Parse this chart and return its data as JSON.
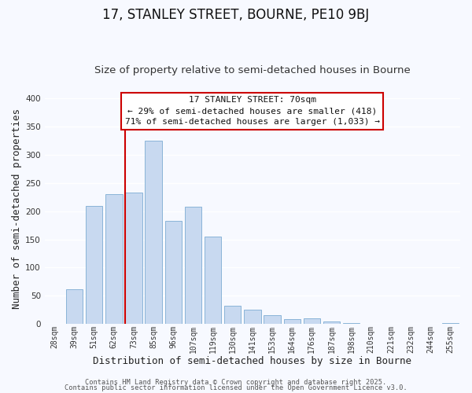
{
  "title": "17, STANLEY STREET, BOURNE, PE10 9BJ",
  "subtitle": "Size of property relative to semi-detached houses in Bourne",
  "xlabel": "Distribution of semi-detached houses by size in Bourne",
  "ylabel": "Number of semi-detached properties",
  "bar_labels": [
    "28sqm",
    "39sqm",
    "51sqm",
    "62sqm",
    "73sqm",
    "85sqm",
    "96sqm",
    "107sqm",
    "119sqm",
    "130sqm",
    "141sqm",
    "153sqm",
    "164sqm",
    "176sqm",
    "187sqm",
    "198sqm",
    "210sqm",
    "221sqm",
    "232sqm",
    "244sqm",
    "255sqm"
  ],
  "bar_values": [
    0,
    62,
    209,
    230,
    233,
    325,
    183,
    208,
    155,
    32,
    25,
    15,
    9,
    10,
    4,
    2,
    0,
    0,
    0,
    0,
    2
  ],
  "bar_color": "#c8d9f0",
  "bar_edge_color": "#8ab4d8",
  "vline_color": "#cc0000",
  "annotation_title": "17 STANLEY STREET: 70sqm",
  "annotation_line1": "← 29% of semi-detached houses are smaller (418)",
  "annotation_line2": "71% of semi-detached houses are larger (1,033) →",
  "ylim": [
    0,
    410
  ],
  "footer1": "Contains HM Land Registry data © Crown copyright and database right 2025.",
  "footer2": "Contains public sector information licensed under the Open Government Licence v3.0.",
  "background_color": "#f7f9ff",
  "grid_color": "#ffffff",
  "title_fontsize": 12,
  "subtitle_fontsize": 9.5,
  "axis_label_fontsize": 9,
  "tick_fontsize": 7,
  "footer_fontsize": 6.2,
  "annotation_fontsize": 8
}
